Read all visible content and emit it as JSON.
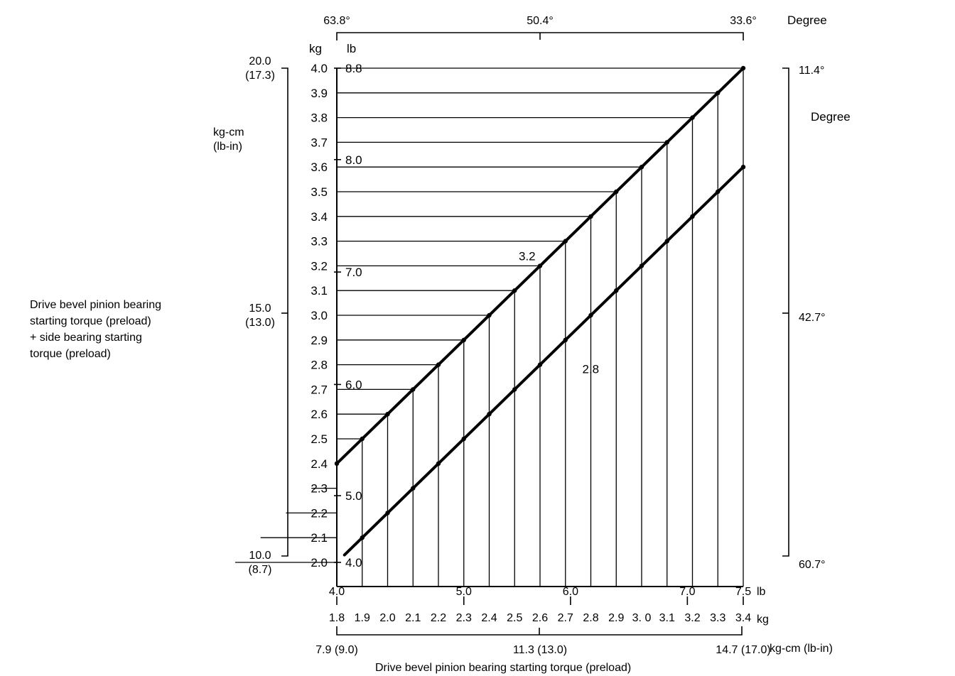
{
  "chart_data": {
    "type": "line",
    "ylabel_left": "Drive bevel pinion bearing\nstarting torque (preload)\n+ side bearing starting\ntorque (preload)",
    "xlabel": "Drive bevel pinion bearing starting torque (preload)",
    "y_kg_unit": "kg",
    "y_lb_unit": "lb",
    "y_kg_ticks": [
      "4.0",
      "3.9",
      "3.8",
      "3.7",
      "3.6",
      "3.5",
      "3.4",
      "3.3",
      "3.2",
      "3.1",
      "3.0",
      "2.9",
      "2.8",
      "2.7",
      "2.6",
      "2.5",
      "2.4",
      "2.3",
      "2.2",
      "2.1",
      "2.0"
    ],
    "y_kg_values": [
      4.0,
      3.9,
      3.8,
      3.7,
      3.6,
      3.5,
      3.4,
      3.3,
      3.2,
      3.1,
      3.0,
      2.9,
      2.8,
      2.7,
      2.6,
      2.5,
      2.4,
      2.3,
      2.2,
      2.1,
      2.0
    ],
    "y_lb_ticks": [
      {
        "label": "8.8",
        "kg": 4.0
      },
      {
        "label": "8.0",
        "kg": 3.63
      },
      {
        "label": "7.0",
        "kg": 3.175
      },
      {
        "label": "6.0",
        "kg": 2.72
      },
      {
        "label": "5.0",
        "kg": 2.27
      },
      {
        "label": "4.0",
        "kg": 2.0
      }
    ],
    "ylim": [
      2.0,
      4.0
    ],
    "x_kg_unit": "kg",
    "x_lb_unit": "lb",
    "x_kg_ticks": [
      "1.8",
      "1.9",
      "2.0",
      "2.1",
      "2.2",
      "2.3",
      "2.4",
      "2.5",
      "2.6",
      "2.7",
      "2.8",
      "2.9",
      "3. 0",
      "3.1",
      "3.2",
      "3.3",
      "3.4"
    ],
    "x_kg_values": [
      1.8,
      1.9,
      2.0,
      2.1,
      2.2,
      2.3,
      2.4,
      2.5,
      2.6,
      2.7,
      2.8,
      2.9,
      3.0,
      3.1,
      3.2,
      3.3,
      3.4
    ],
    "x_lb_ticks": [
      {
        "label": "4.0",
        "kg": 1.8
      },
      {
        "label": "5.0",
        "kg": 2.3
      },
      {
        "label": "6.0",
        "kg": 2.72
      },
      {
        "label": "7.0",
        "kg": 3.18
      },
      {
        "label": "7.5",
        "kg": 3.4
      }
    ],
    "xlim": [
      1.8,
      3.4
    ],
    "x_kgcm_unit": "kg-cm (lb-in)",
    "x_kgcm_ticks": [
      {
        "label": "7.9 (9.0)",
        "kg": 1.8
      },
      {
        "label": "11.3 (13.0)",
        "kg": 2.6
      },
      {
        "label": "14.7 (17.0)",
        "kg": 3.4
      }
    ],
    "y_kgcm_unit": "kg-cm\n(lb-in)",
    "y_kgcm_ticks": [
      {
        "label": "20.0\n(17.3)",
        "kg": 4.0
      },
      {
        "label": "15.0\n(13.0)",
        "kg": 3.0
      },
      {
        "label": "10.0\n(8.7)",
        "kg": 2.0
      }
    ],
    "top_degree_unit": "Degree",
    "top_degree_ticks": [
      {
        "label": "63.8°",
        "kg": 1.8
      },
      {
        "label": "50.4°",
        "kg": 2.6
      },
      {
        "label": "33.6°",
        "kg": 3.4
      }
    ],
    "right_degree_unit": "Degree",
    "right_degree_ticks": [
      {
        "label": "11.4°",
        "kg": 4.0
      },
      {
        "label": "42.7°",
        "kg": 3.0
      },
      {
        "label": "60.7°",
        "kg": 2.0
      }
    ],
    "series": [
      {
        "label": "3.2",
        "label_at": [
          2.6,
          3.2
        ],
        "x": [
          1.8,
          3.4
        ],
        "y": [
          2.4,
          4.0
        ]
      },
      {
        "label": "2.8",
        "label_at": [
          2.8,
          2.8
        ],
        "x": [
          1.83,
          3.4
        ],
        "y": [
          2.03,
          3.6
        ]
      }
    ]
  }
}
